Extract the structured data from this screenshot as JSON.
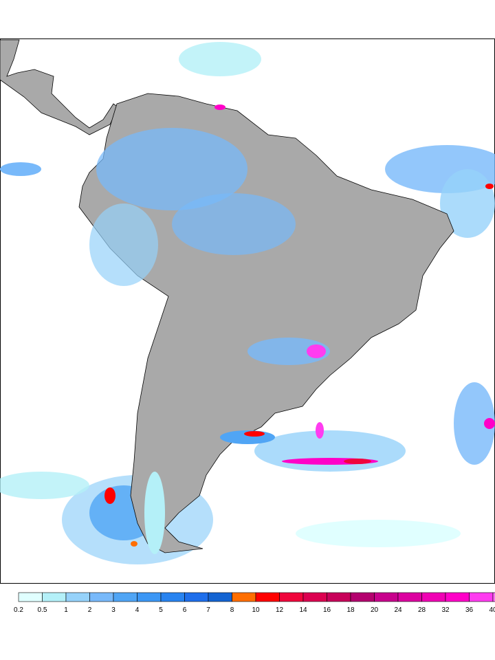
{
  "colorbar": {
    "labels": [
      "0.2",
      "0.5",
      "1",
      "2",
      "3",
      "4",
      "5",
      "6",
      "7",
      "8",
      "10",
      "12",
      "14",
      "16",
      "18",
      "20",
      "24",
      "28",
      "32",
      "36",
      "40"
    ],
    "colors": [
      "#e0ffff",
      "#b4f0f8",
      "#96d2fa",
      "#78b9fa",
      "#50a5f5",
      "#3c97f5",
      "#2883f0",
      "#1e6eeb",
      "#1464d2",
      "#ff6e00",
      "#ff0000",
      "#f0053c",
      "#dc0050",
      "#c8005a",
      "#b4006e",
      "#c8008c",
      "#dc00a0",
      "#f000b4",
      "#ff00c8",
      "#ff3cf0",
      "#ff6ef5"
    ]
  },
  "map": {
    "land_color": "#a9a9a9",
    "ocean_color": "#ffffff",
    "border_color": "#000000"
  }
}
